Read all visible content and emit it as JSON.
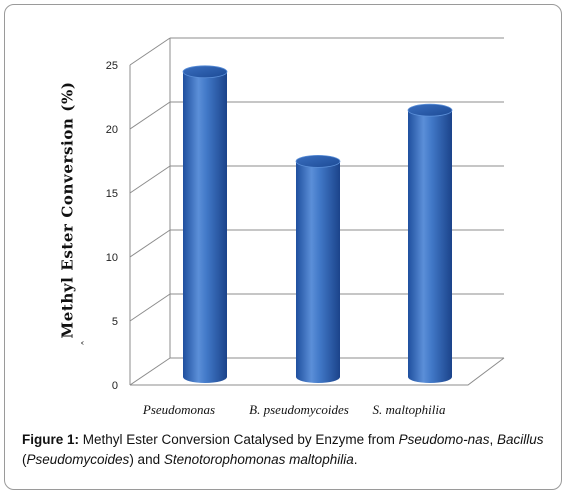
{
  "chart_data": {
    "type": "bar",
    "categories": [
      "Pseudomonas",
      "B. pseudomycoides",
      "S. maltophilia"
    ],
    "values": [
      24,
      17,
      21
    ],
    "title": "",
    "xlabel": "",
    "ylabel": "Methyl Ester Conversion (%)",
    "ylim": [
      0,
      25
    ],
    "yticks": [
      0,
      5,
      10,
      15,
      20,
      25
    ],
    "grid": true,
    "bar_color": "#3a6fc0",
    "bar_shape": "3d-cylinder"
  },
  "ylabel_stray_mark": "ˆ",
  "caption": {
    "label": "Figure 1:",
    "text1": " Methyl Ester Conversion Catalysed by Enzyme from ",
    "italic1": "Pseudomo-nas",
    "text2": ", ",
    "italic2": "Bacillus",
    "text3": " (",
    "italic3": "Pseudomycoides",
    "text4": ") and ",
    "italic4": "Stenotorophomonas maltophilia",
    "text5": "."
  }
}
